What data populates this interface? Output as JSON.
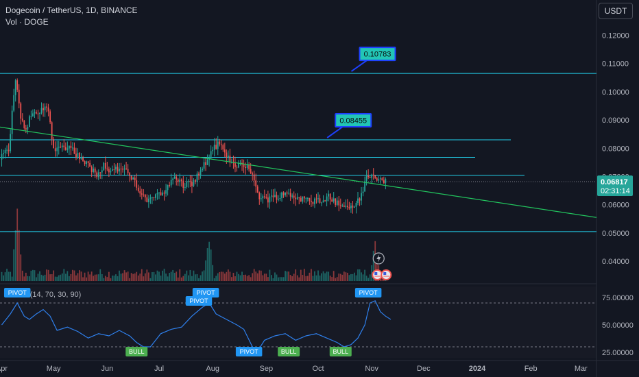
{
  "header": {
    "title": "Dogecoin / TetherUS, 1D, BINANCE",
    "volume_label": "Vol · DOGE",
    "currency_button": "USDT"
  },
  "price_badge": {
    "price": "0.06817",
    "countdown": "02:31:14",
    "color": "#26a69a"
  },
  "colors": {
    "up": "#26a69a",
    "down": "#ef5350",
    "level": "#22d3ee",
    "trend": "#22c55e",
    "rsi": "#2f80ed",
    "bull": "#4caf50",
    "pivot": "#2196f3"
  },
  "chart_data": [
    {
      "type": "candlestick",
      "title": "Dogecoin / TetherUS, 1D, BINANCE",
      "x_ticks": [
        "Apr",
        "May",
        "Jun",
        "Jul",
        "Aug",
        "Sep",
        "Oct",
        "Nov",
        "Dec",
        "2024",
        "Feb",
        "Mar"
      ],
      "y_ticks": [
        "0.12000",
        "0.11000",
        "0.10000",
        "0.09000",
        "0.08000",
        "0.07000",
        "0.06000",
        "0.05000",
        "0.04000"
      ],
      "ylim": [
        0.0325,
        0.1325
      ],
      "x_day_range": [
        -1,
        344
      ],
      "horizontal_levels": [
        0.1065,
        0.083,
        0.0768,
        0.0705,
        0.0505
      ],
      "trendline": [
        [
          -1,
          0.0875
        ],
        [
          344,
          0.0555
        ]
      ],
      "callouts": [
        {
          "label": "0.10783",
          "day": 207
        },
        {
          "label": "0.08455",
          "day": 193
        }
      ],
      "current_price": 0.06817,
      "price_path": [
        [
          0,
          0.076
        ],
        [
          5,
          0.08
        ],
        [
          9,
          0.105
        ],
        [
          12,
          0.09
        ],
        [
          15,
          0.087
        ],
        [
          18,
          0.092
        ],
        [
          22,
          0.092
        ],
        [
          26,
          0.095
        ],
        [
          28,
          0.093
        ],
        [
          31,
          0.08
        ],
        [
          35,
          0.08
        ],
        [
          40,
          0.081
        ],
        [
          44,
          0.078
        ],
        [
          48,
          0.076
        ],
        [
          52,
          0.073
        ],
        [
          56,
          0.071
        ],
        [
          60,
          0.074
        ],
        [
          64,
          0.072
        ],
        [
          70,
          0.073
        ],
        [
          74,
          0.071
        ],
        [
          78,
          0.068
        ],
        [
          82,
          0.063
        ],
        [
          86,
          0.061
        ],
        [
          90,
          0.064
        ],
        [
          96,
          0.065
        ],
        [
          101,
          0.07
        ],
        [
          106,
          0.067
        ],
        [
          112,
          0.068
        ],
        [
          116,
          0.072
        ],
        [
          122,
          0.078
        ],
        [
          126,
          0.082
        ],
        [
          131,
          0.077
        ],
        [
          136,
          0.074
        ],
        [
          140,
          0.075
        ],
        [
          144,
          0.073
        ],
        [
          147,
          0.068
        ],
        [
          150,
          0.063
        ],
        [
          155,
          0.062
        ],
        [
          160,
          0.063
        ],
        [
          166,
          0.064
        ],
        [
          170,
          0.063
        ],
        [
          175,
          0.062
        ],
        [
          180,
          0.061
        ],
        [
          186,
          0.062
        ],
        [
          190,
          0.063
        ],
        [
          196,
          0.06
        ],
        [
          201,
          0.059
        ],
        [
          205,
          0.06
        ],
        [
          209,
          0.063
        ],
        [
          212,
          0.07
        ],
        [
          216,
          0.07
        ],
        [
          219,
          0.069
        ],
        [
          222,
          0.06817
        ]
      ],
      "volume": {
        "label": "Vol · DOGE",
        "spikes": [
          [
            9,
            1.0
          ],
          [
            120,
            0.5
          ],
          [
            216,
            0.45
          ]
        ]
      }
    },
    {
      "type": "line",
      "title": "Lib (14, 70, 30, 90)",
      "y_ticks": [
        "75.00000",
        "50.00000",
        "25.00000"
      ],
      "ylim": [
        20,
        85
      ],
      "reference_levels": [
        70,
        30
      ],
      "series": [
        {
          "values": [
            [
              0,
              50
            ],
            [
              5,
              60
            ],
            [
              9,
              70
            ],
            [
              13,
              58
            ],
            [
              16,
              55
            ],
            [
              20,
              60
            ],
            [
              24,
              64
            ],
            [
              28,
              58
            ],
            [
              32,
              45
            ],
            [
              38,
              48
            ],
            [
              44,
              44
            ],
            [
              50,
              38
            ],
            [
              56,
              42
            ],
            [
              62,
              40
            ],
            [
              68,
              45
            ],
            [
              74,
              40
            ],
            [
              78,
              34
            ],
            [
              82,
              30
            ],
            [
              86,
              30
            ],
            [
              92,
              42
            ],
            [
              98,
              46
            ],
            [
              104,
              48
            ],
            [
              110,
              58
            ],
            [
              116,
              66
            ],
            [
              120,
              70
            ],
            [
              124,
              60
            ],
            [
              130,
              55
            ],
            [
              136,
              50
            ],
            [
              140,
              46
            ],
            [
              145,
              30
            ],
            [
              148,
              26
            ],
            [
              152,
              36
            ],
            [
              158,
              40
            ],
            [
              164,
              42
            ],
            [
              170,
              36
            ],
            [
              176,
              40
            ],
            [
              182,
              42
            ],
            [
              188,
              38
            ],
            [
              194,
              34
            ],
            [
              198,
              30
            ],
            [
              202,
              32
            ],
            [
              206,
              38
            ],
            [
              210,
              50
            ],
            [
              213,
              70
            ],
            [
              216,
              72
            ],
            [
              219,
              62
            ],
            [
              222,
              58
            ],
            [
              225,
              55
            ]
          ]
        }
      ],
      "markers": [
        {
          "label": "PIVOT",
          "kind": "pivot",
          "day": 9,
          "pos": "above"
        },
        {
          "label": "PIVOT",
          "kind": "pivot",
          "day": 118,
          "pos": "above"
        },
        {
          "label": "PIVOT",
          "kind": "pivot",
          "day": 114,
          "pos": "above2"
        },
        {
          "label": "PIVOT",
          "kind": "pivot",
          "day": 212,
          "pos": "above"
        },
        {
          "label": "BULL",
          "kind": "bull",
          "day": 78,
          "pos": "below"
        },
        {
          "label": "PIVOT",
          "kind": "pivot",
          "day": 143,
          "pos": "below"
        },
        {
          "label": "BULL",
          "kind": "bull",
          "day": 166,
          "pos": "below"
        },
        {
          "label": "BULL",
          "kind": "bull",
          "day": 196,
          "pos": "below"
        }
      ]
    }
  ]
}
